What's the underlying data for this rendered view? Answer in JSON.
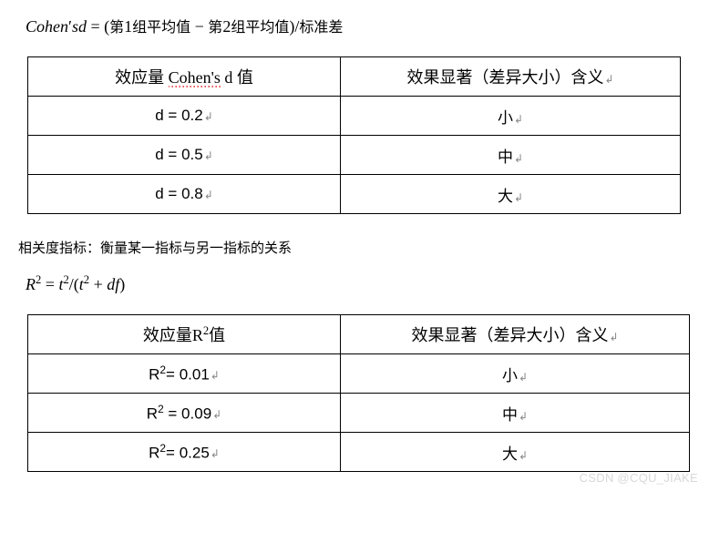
{
  "formula1": {
    "lhs_latin": "Cohen",
    "lhs_prime": "′",
    "lhs_tail": "sd",
    "eq": " = ",
    "open": "(",
    "g1_pre": "第",
    "g1_num": "1",
    "g1_post": "组平均值",
    "minus": " − ",
    "g2_pre": "第",
    "g2_num": "2",
    "g2_post": "组平均值",
    "close": ")",
    "slash": "/",
    "denom_cn": "标准差"
  },
  "table1": {
    "header_left": "效应量 ",
    "header_left_red": "Cohen's",
    "header_left_tail": " d 值",
    "header_right": "效果显著（差异大小）含义",
    "rows": [
      {
        "d": "d = 0.2",
        "meaning": "小"
      },
      {
        "d": "d = 0.5",
        "meaning": "中"
      },
      {
        "d": "d = 0.8",
        "meaning": "大"
      }
    ]
  },
  "paragraph": "相关度指标：衡量某一指标与另一指标的关系",
  "formula2": {
    "R": "R",
    "sup": "2",
    "eq": " = ",
    "t": "t",
    "slash": "/",
    "open": "(",
    "plus": " + ",
    "df": "df",
    "close": ")"
  },
  "table2": {
    "header_left_pre": "效应量R",
    "header_left_sup": "2",
    "header_left_post": "值",
    "header_right": "效果显著（差异大小）含义",
    "rows": [
      {
        "r2_pre": "R",
        "r2_sup": "2",
        "r2_eq": "= 0.01",
        "meaning": "小"
      },
      {
        "r2_pre": "R",
        "r2_sup": "2",
        "r2_eq": " = 0.09",
        "meaning": "中"
      },
      {
        "r2_pre": "R",
        "r2_sup": "2",
        "r2_eq": "= 0.25",
        "meaning": "大"
      }
    ]
  },
  "return_mark": "↲",
  "watermark": "CSDN @CQU_JIAKE"
}
